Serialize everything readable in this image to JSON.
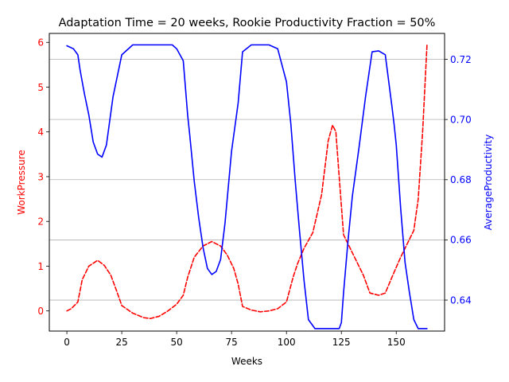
{
  "chart_data": {
    "type": "line",
    "title": "Adaptation Time = 20 weeks, Rookie Productivity Fraction = 50%",
    "xlabel": "Weeks",
    "ylabel_left": "WorkPressure",
    "ylabel_right": "AverageProductivity",
    "xlim": [
      -8,
      172
    ],
    "ylim_left": [
      -0.45,
      6.2
    ],
    "ylim_right": [
      0.6297,
      0.7286
    ],
    "x_ticks": [
      0,
      25,
      50,
      75,
      100,
      125,
      150
    ],
    "y_left_ticks": [
      0,
      1,
      2,
      3,
      4,
      5,
      6
    ],
    "y_right_ticks": [
      0.64,
      0.66,
      0.68,
      0.7,
      0.72
    ],
    "y_right_tick_labels": [
      "0.64",
      "0.66",
      "0.68",
      "0.70",
      "0.72"
    ],
    "grid": "horizontal, right axis",
    "colors": {
      "left": "#ff0000",
      "right": "#0000ff",
      "grid": "#b0b0b0",
      "axis": "#000000"
    },
    "series": [
      {
        "name": "WorkPressure",
        "axis": "left",
        "style": "dashed",
        "color": "#ff0000",
        "x": [
          0,
          2,
          5,
          7,
          10,
          14,
          17,
          20,
          23,
          25,
          30,
          35,
          38,
          42,
          46,
          50,
          53,
          55,
          58,
          62,
          66,
          70,
          73,
          76,
          78,
          80,
          84,
          88,
          92,
          96,
          100,
          103,
          105,
          108,
          112,
          116,
          119,
          121,
          122.5,
          124,
          126,
          130,
          135,
          138,
          142,
          145,
          148,
          152,
          156,
          158,
          160,
          162,
          164
        ],
        "y": [
          0.0,
          0.05,
          0.2,
          0.7,
          1.0,
          1.13,
          1.02,
          0.8,
          0.4,
          0.12,
          -0.05,
          -0.15,
          -0.17,
          -0.12,
          0.0,
          0.15,
          0.35,
          0.75,
          1.2,
          1.45,
          1.55,
          1.45,
          1.25,
          0.95,
          0.6,
          0.1,
          0.02,
          -0.02,
          0.0,
          0.05,
          0.2,
          0.75,
          1.05,
          1.4,
          1.75,
          2.6,
          3.8,
          4.15,
          4.0,
          3.0,
          1.7,
          1.3,
          0.8,
          0.4,
          0.35,
          0.4,
          0.75,
          1.2,
          1.6,
          1.8,
          2.5,
          4.0,
          5.95
        ]
      },
      {
        "name": "AverageProductivity",
        "axis": "right",
        "style": "solid",
        "color": "#0000ff",
        "x": [
          0,
          3,
          5,
          6,
          8,
          10,
          12,
          14,
          16,
          18,
          21,
          23,
          25,
          30,
          35,
          40,
          45,
          48,
          50,
          53,
          54,
          55,
          56,
          58,
          60,
          62,
          64,
          66,
          68,
          70,
          72,
          75,
          78,
          80,
          84,
          88,
          92,
          96,
          100,
          102,
          104,
          106,
          108,
          110,
          113,
          116,
          120,
          124,
          125,
          126,
          128,
          130,
          133,
          136,
          139,
          142,
          145,
          148,
          149,
          150,
          152,
          154,
          156,
          158,
          160,
          162,
          164
        ],
        "y": [
          0.7245,
          0.7235,
          0.7215,
          0.7165,
          0.7085,
          0.7015,
          0.6925,
          0.6885,
          0.6875,
          0.6915,
          0.7075,
          0.7145,
          0.7215,
          0.7248,
          0.7248,
          0.7248,
          0.7248,
          0.7248,
          0.7235,
          0.7195,
          0.7105,
          0.7015,
          0.6945,
          0.6795,
          0.6675,
          0.6575,
          0.6505,
          0.6485,
          0.6495,
          0.6535,
          0.6655,
          0.6895,
          0.7055,
          0.7225,
          0.7248,
          0.7248,
          0.7248,
          0.7235,
          0.7125,
          0.6985,
          0.6795,
          0.6625,
          0.6465,
          0.6335,
          0.6305,
          0.6305,
          0.6305,
          0.6305,
          0.6325,
          0.6425,
          0.6595,
          0.6745,
          0.6905,
          0.7075,
          0.7225,
          0.7228,
          0.7215,
          0.7045,
          0.6985,
          0.6915,
          0.6705,
          0.6525,
          0.6425,
          0.6335,
          0.6305,
          0.6305,
          0.6305
        ]
      }
    ]
  }
}
